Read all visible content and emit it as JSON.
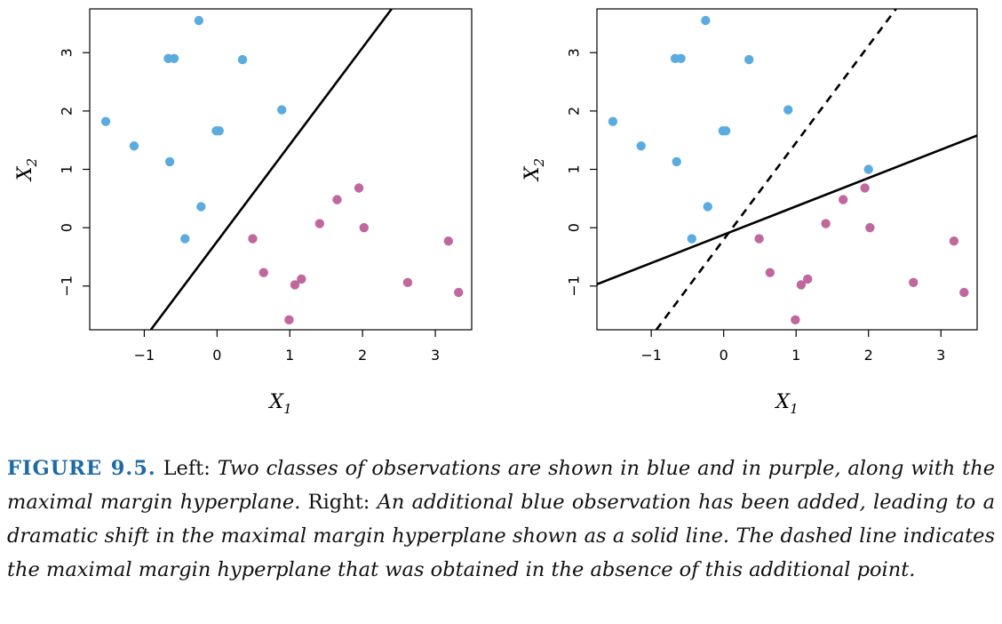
{
  "chart_data": [
    {
      "type": "scatter",
      "title": "",
      "xlabel": "X1",
      "ylabel": "X2",
      "xlim": [
        -1.75,
        3.5
      ],
      "ylim": [
        -1.75,
        3.75
      ],
      "x_ticks": [
        -1,
        0,
        1,
        2,
        3
      ],
      "y_ticks": [
        -1,
        0,
        1,
        2,
        3
      ],
      "x_tick_labels": [
        "−1",
        "0",
        "1",
        "2",
        "3"
      ],
      "y_tick_labels": [
        "−1",
        "0",
        "1",
        "2",
        "3"
      ],
      "grid": false,
      "series": [
        {
          "color": "#5aace0",
          "points": [
            [
              -0.25,
              3.55
            ],
            [
              -0.67,
              2.9
            ],
            [
              -0.59,
              2.9
            ],
            [
              0.35,
              2.88
            ],
            [
              0.89,
              2.02
            ],
            [
              -1.53,
              1.82
            ],
            [
              -1.14,
              1.4
            ],
            [
              -0.01,
              1.66
            ],
            [
              0.03,
              1.66
            ],
            [
              -0.65,
              1.13
            ],
            [
              -0.22,
              0.36
            ],
            [
              -0.44,
              -0.19
            ]
          ]
        },
        {
          "color": "#c0689e",
          "points": [
            [
              1.95,
              0.68
            ],
            [
              1.65,
              0.48
            ],
            [
              1.41,
              0.07
            ],
            [
              2.02,
              0.0
            ],
            [
              0.49,
              -0.19
            ],
            [
              3.18,
              -0.23
            ],
            [
              0.64,
              -0.77
            ],
            [
              1.16,
              -0.88
            ],
            [
              1.07,
              -0.98
            ],
            [
              2.62,
              -0.94
            ],
            [
              3.32,
              -1.11
            ],
            [
              0.99,
              -1.58
            ]
          ]
        }
      ],
      "lines": [
        {
          "style": "solid",
          "color": "#000000",
          "points": [
            [
              -0.91,
              -1.75
            ],
            [
              2.4,
              3.75
            ]
          ]
        }
      ]
    },
    {
      "type": "scatter",
      "title": "",
      "xlabel": "X1",
      "ylabel": "X2",
      "xlim": [
        -1.75,
        3.5
      ],
      "ylim": [
        -1.75,
        3.75
      ],
      "x_ticks": [
        -1,
        0,
        1,
        2,
        3
      ],
      "y_ticks": [
        -1,
        0,
        1,
        2,
        3
      ],
      "x_tick_labels": [
        "−1",
        "0",
        "1",
        "2",
        "3"
      ],
      "y_tick_labels": [
        "−1",
        "0",
        "1",
        "2",
        "3"
      ],
      "grid": false,
      "series": [
        {
          "color": "#5aace0",
          "points": [
            [
              -0.25,
              3.55
            ],
            [
              -0.67,
              2.9
            ],
            [
              -0.59,
              2.9
            ],
            [
              0.35,
              2.88
            ],
            [
              0.89,
              2.02
            ],
            [
              -1.53,
              1.82
            ],
            [
              -1.14,
              1.4
            ],
            [
              -0.01,
              1.66
            ],
            [
              0.03,
              1.66
            ],
            [
              -0.65,
              1.13
            ],
            [
              -0.22,
              0.36
            ],
            [
              -0.44,
              -0.19
            ],
            [
              2.0,
              1.0
            ]
          ]
        },
        {
          "color": "#c0689e",
          "points": [
            [
              1.95,
              0.68
            ],
            [
              1.65,
              0.48
            ],
            [
              1.41,
              0.07
            ],
            [
              2.02,
              0.0
            ],
            [
              0.49,
              -0.19
            ],
            [
              3.18,
              -0.23
            ],
            [
              0.64,
              -0.77
            ],
            [
              1.16,
              -0.88
            ],
            [
              1.07,
              -0.98
            ],
            [
              2.62,
              -0.94
            ],
            [
              3.32,
              -1.11
            ],
            [
              0.99,
              -1.58
            ]
          ]
        }
      ],
      "lines": [
        {
          "style": "solid",
          "color": "#000000",
          "points": [
            [
              -1.75,
              -0.97
            ],
            [
              3.5,
              1.58
            ]
          ]
        },
        {
          "style": "dashed",
          "color": "#000000",
          "points": [
            [
              -0.93,
              -1.75
            ],
            [
              2.38,
              3.75
            ]
          ]
        }
      ]
    }
  ],
  "caption": {
    "label": "FIGURE 9.5.",
    "left_heading": "Left:",
    "left_text": "Two classes of observations are shown in blue and in purple, along with the maximal margin hyperplane.",
    "right_heading": "Right:",
    "right_text": "An additional blue observation has been added, leading to a dramatic shift in the maximal margin hyperplane shown as a solid line. The dashed line indicates the maximal margin hyperplane that was obtained in the absence of this additional point."
  }
}
